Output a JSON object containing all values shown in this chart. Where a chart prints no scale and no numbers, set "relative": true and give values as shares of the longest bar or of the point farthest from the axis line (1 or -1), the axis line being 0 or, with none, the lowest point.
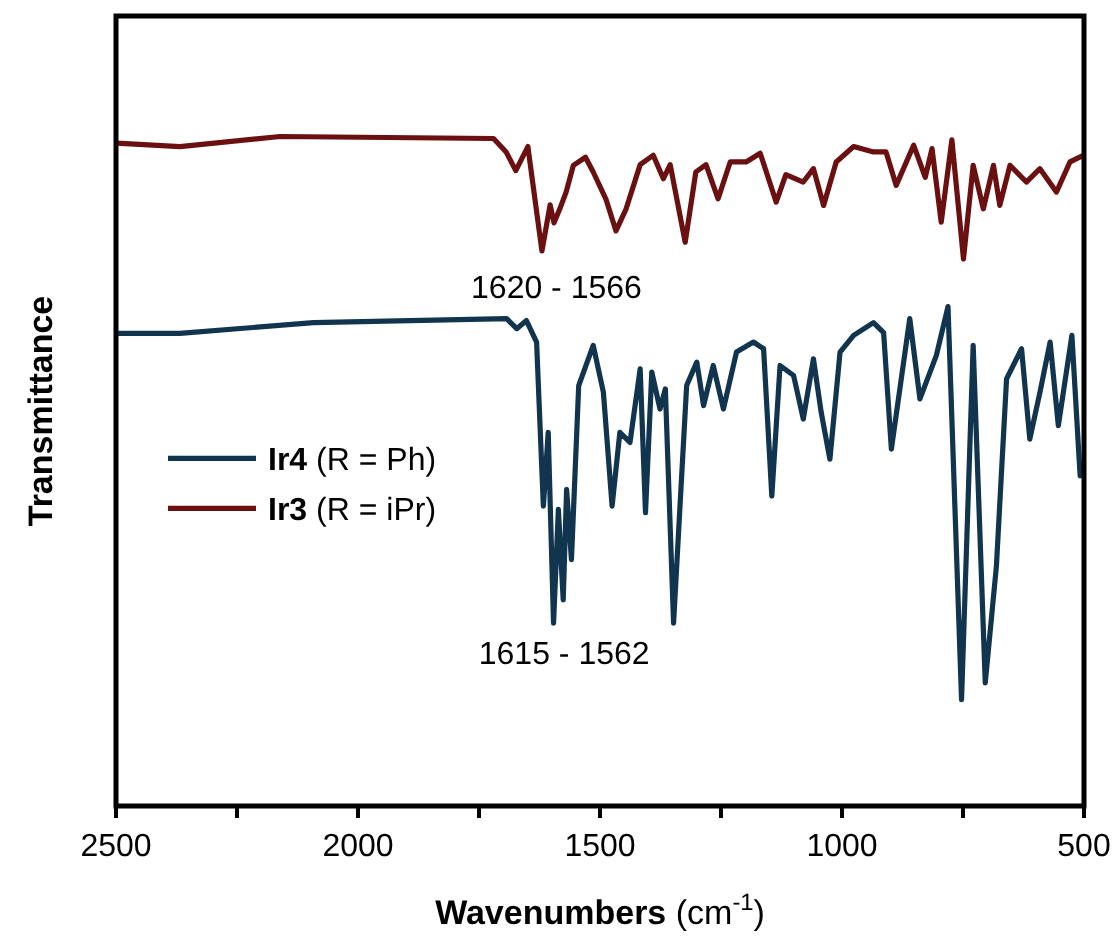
{
  "chart_data": {
    "type": "line",
    "relative": true,
    "xlabel": "Wavenumbers (cm$^{-1}$)",
    "ylabel": "Transmittance",
    "xlim": [
      2500,
      500
    ],
    "xticks": [
      2500,
      {
        "value": 2250,
        "label": null
      },
      2000,
      {
        "value": 1750,
        "label": null
      },
      1500,
      {
        "value": 1250,
        "label": null
      },
      1000,
      {
        "value": 750,
        "label": null
      },
      500
    ],
    "legend": "left",
    "grid": false,
    "marker": "none",
    "line_style": "solid",
    "tick_labels": "x",
    "annotations": [
      "1620 - 1566",
      "1615 - 1562"
    ],
    "series": [
      {
        "name": "Ir4 (R = Ph)",
        "color": "#11344f",
        "x": [
          2499,
          2368,
          2092,
          1693,
          1672,
          1652,
          1631,
          1617,
          1607,
          1596,
          1586,
          1576,
          1569,
          1559,
          1544,
          1514,
          1493,
          1475,
          1459,
          1438,
          1417,
          1406,
          1393,
          1376,
          1365,
          1348,
          1321,
          1300,
          1286,
          1266,
          1245,
          1218,
          1183,
          1162,
          1145,
          1128,
          1100,
          1080,
          1059,
          1043,
          1025,
          1004,
          976,
          935,
          914,
          898,
          860,
          839,
          805,
          781,
          753,
          729,
          704,
          681,
          660,
          629,
          612,
          591,
          570,
          553,
          525,
          508
        ],
        "values": [
          0.706,
          0.706,
          0.722,
          0.728,
          0.713,
          0.725,
          0.693,
          0.448,
          0.558,
          0.273,
          0.443,
          0.308,
          0.473,
          0.368,
          0.628,
          0.688,
          0.618,
          0.448,
          0.558,
          0.543,
          0.653,
          0.438,
          0.648,
          0.593,
          0.623,
          0.273,
          0.628,
          0.663,
          0.598,
          0.658,
          0.593,
          0.678,
          0.693,
          0.683,
          0.463,
          0.658,
          0.643,
          0.578,
          0.668,
          0.588,
          0.518,
          0.678,
          0.703,
          0.722,
          0.707,
          0.533,
          0.728,
          0.608,
          0.673,
          0.746,
          0.159,
          0.688,
          0.184,
          0.358,
          0.638,
          0.683,
          0.548,
          0.618,
          0.693,
          0.568,
          0.703,
          0.493
        ]
      },
      {
        "name": "Ir3 (R = iPr)",
        "color": "#6b1010",
        "x": [
          2499,
          2368,
          2161,
          1720,
          1694,
          1674,
          1649,
          1620,
          1603,
          1595,
          1583,
          1570,
          1555,
          1530,
          1514,
          1488,
          1467,
          1446,
          1417,
          1390,
          1369,
          1355,
          1324,
          1302,
          1281,
          1256,
          1231,
          1198,
          1169,
          1136,
          1116,
          1080,
          1059,
          1038,
          1012,
          976,
          935,
          909,
          888,
          852,
          828,
          814,
          795,
          773,
          749,
          729,
          708,
          687,
          674,
          653,
          619,
          591,
          557,
          529,
          501
        ],
        "values": [
          0.99,
          0.985,
          1.0,
          0.997,
          0.977,
          0.949,
          0.985,
          0.829,
          0.898,
          0.871,
          0.892,
          0.917,
          0.957,
          0.969,
          0.947,
          0.907,
          0.859,
          0.892,
          0.958,
          0.972,
          0.937,
          0.958,
          0.842,
          0.947,
          0.958,
          0.907,
          0.962,
          0.962,
          0.975,
          0.902,
          0.943,
          0.932,
          0.952,
          0.897,
          0.962,
          0.985,
          0.977,
          0.977,
          0.927,
          0.987,
          0.939,
          0.982,
          0.872,
          0.995,
          0.817,
          0.957,
          0.892,
          0.957,
          0.897,
          0.957,
          0.932,
          0.952,
          0.917,
          0.962,
          0.972
        ]
      }
    ]
  }
}
